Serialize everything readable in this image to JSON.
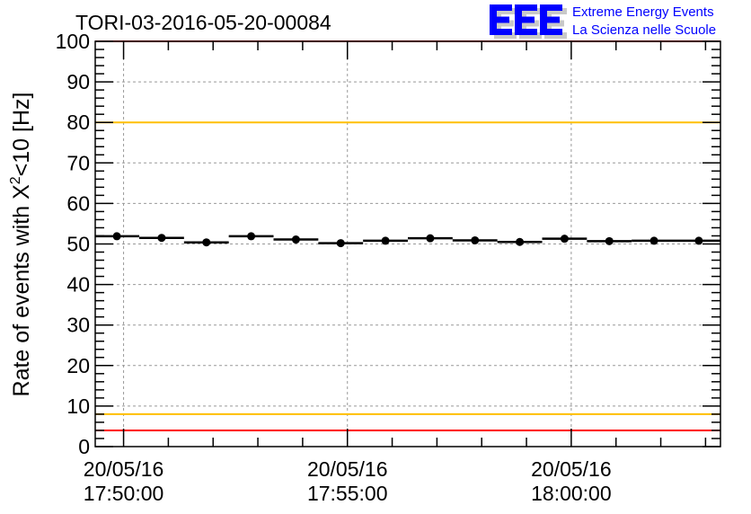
{
  "chart_data": {
    "type": "scatter",
    "title": "TORI-03-2016-05-20-00084",
    "ylabel": "Rate of events with X",
    "ylabel_sup": "2",
    "ylabel_rest": "<10 [Hz]",
    "xlabel": "",
    "x_unit": "seconds from 20/05/16 17:50:00",
    "xlim": [
      -38,
      800
    ],
    "ylim": [
      0,
      100
    ],
    "grid": true,
    "y_ticks": [
      0,
      10,
      20,
      30,
      40,
      50,
      60,
      70,
      80,
      90,
      100
    ],
    "x_ticks": [
      {
        "value": 0,
        "date": "20/05/16",
        "time": "17:50:00"
      },
      {
        "value": 300,
        "date": "20/05/16",
        "time": "17:55:00"
      },
      {
        "value": 600,
        "date": "20/05/16",
        "time": "18:00:00"
      }
    ],
    "bin_width": 60,
    "series": [
      {
        "name": "rate",
        "x": [
          -9,
          51,
          111,
          171,
          231,
          291,
          351,
          411,
          471,
          531,
          591,
          651,
          711,
          771
        ],
        "y": [
          51.9,
          51.5,
          50.4,
          51.9,
          51.1,
          50.2,
          50.8,
          51.4,
          50.9,
          50.5,
          51.3,
          50.7,
          50.8,
          50.8
        ]
      }
    ],
    "reference_lines": [
      {
        "y": 100,
        "color": "#ff0000"
      },
      {
        "y": 4,
        "color": "#ff0000"
      },
      {
        "y": 80,
        "color": "#ffbf00"
      },
      {
        "y": 8,
        "color": "#ffbf00"
      }
    ]
  },
  "logo": {
    "text": "EEE",
    "line1": "Extreme Energy Events",
    "line2": "La Scienza nelle Scuole",
    "color": "#0000ff"
  }
}
